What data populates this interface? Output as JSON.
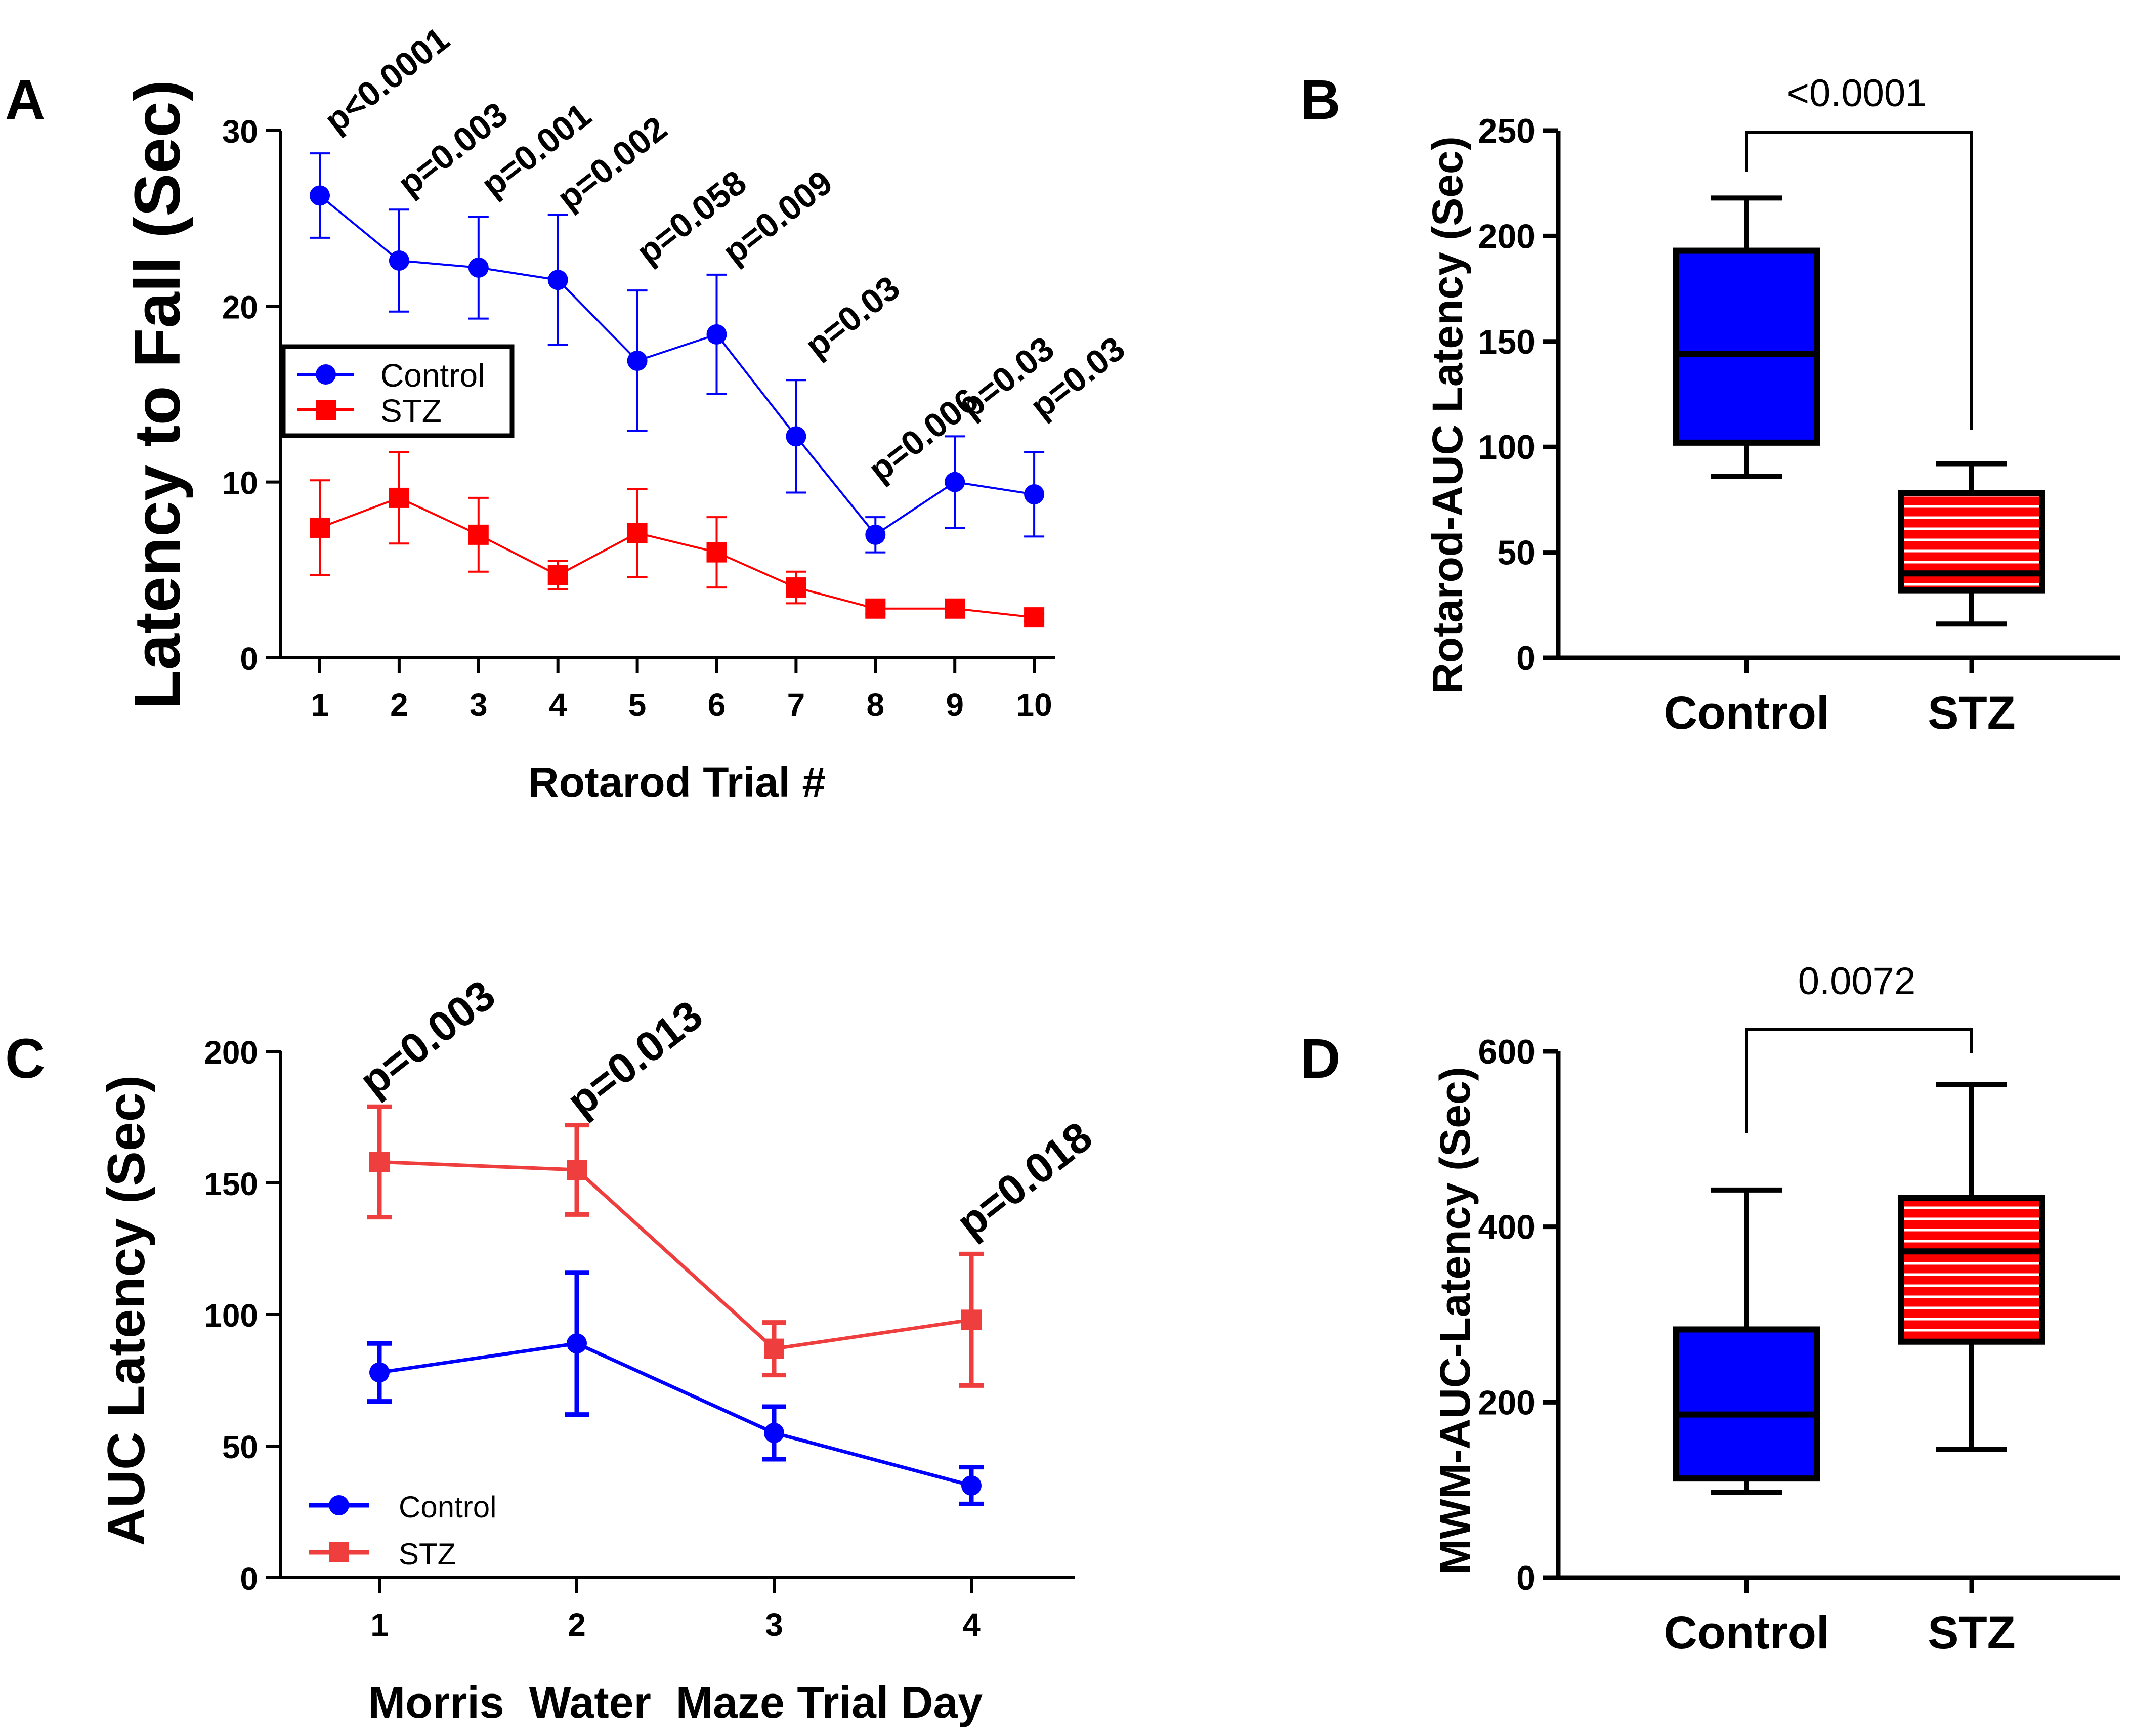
{
  "colors": {
    "control": "#0000ff",
    "stz": "#ff0000",
    "stz_light": "#ef3e3e",
    "axis": "#000000"
  },
  "chart_data": [
    {
      "panel": "A",
      "type": "line",
      "xlabel": "Rotarod Trial #",
      "ylabel": "Latency to Fall (Sec)",
      "x": [
        1,
        2,
        3,
        4,
        5,
        6,
        7,
        8,
        9,
        10
      ],
      "ylim": [
        0,
        30
      ],
      "yticks": [
        0,
        10,
        20,
        30
      ],
      "legend": [
        "Control",
        "STZ"
      ],
      "series": [
        {
          "name": "Control",
          "values": [
            26.3,
            22.6,
            22.2,
            21.5,
            16.9,
            18.4,
            12.6,
            7.0,
            10.0,
            9.3
          ],
          "errors": [
            2.4,
            2.9,
            2.9,
            3.7,
            4.0,
            3.4,
            3.2,
            1.0,
            2.6,
            2.4
          ]
        },
        {
          "name": "STZ",
          "values": [
            7.4,
            9.1,
            7.0,
            4.7,
            7.1,
            6.0,
            4.0,
            2.8,
            2.8,
            2.3
          ],
          "errors": [
            2.7,
            2.6,
            2.1,
            0.8,
            2.5,
            2.0,
            0.9,
            0.3,
            0.2,
            0.2
          ]
        }
      ],
      "annotations": [
        "p<0.0001",
        "p=0.003",
        "p=0.001",
        "p=0.002",
        "p=0.058",
        "p=0.009",
        "p=0.03",
        "p=0.006",
        "p=0.03",
        "p=0.03"
      ]
    },
    {
      "panel": "B",
      "type": "box",
      "ylabel": "Rotarod-AUC Latency (Sec)",
      "categories": [
        "Control",
        "STZ"
      ],
      "ylim": [
        0,
        250
      ],
      "yticks": [
        0,
        50,
        100,
        150,
        200,
        250
      ],
      "boxes": [
        {
          "name": "Control",
          "min": 86,
          "q1": 102,
          "median": 144,
          "q3": 193,
          "max": 218
        },
        {
          "name": "STZ",
          "min": 16,
          "q1": 32,
          "median": 40,
          "q3": 78,
          "max": 92
        }
      ],
      "significance": "<0.0001"
    },
    {
      "panel": "C",
      "type": "line",
      "xlabel": "Morris  Water  Maze Trial Day",
      "ylabel": "AUC Latency (Sec)",
      "x": [
        1,
        2,
        3,
        4
      ],
      "ylim": [
        0,
        200
      ],
      "yticks": [
        0,
        50,
        100,
        150,
        200
      ],
      "legend": [
        "Control",
        "STZ"
      ],
      "series": [
        {
          "name": "Control",
          "values": [
            78,
            89,
            55,
            35
          ],
          "errors": [
            11,
            27,
            10,
            7
          ]
        },
        {
          "name": "STZ",
          "values": [
            158,
            155,
            87,
            98
          ],
          "errors": [
            21,
            17,
            10,
            25
          ]
        }
      ],
      "annotations": [
        "p=0.003",
        "p=0.013",
        "p=0.018"
      ]
    },
    {
      "panel": "D",
      "type": "box",
      "ylabel": "MWM-AUC-Latency (Sec)",
      "categories": [
        "Control",
        "STZ"
      ],
      "ylim": [
        0,
        600
      ],
      "yticks": [
        0,
        200,
        400,
        600
      ],
      "boxes": [
        {
          "name": "Control",
          "min": 97,
          "q1": 113,
          "median": 186,
          "q3": 283,
          "max": 442
        },
        {
          "name": "STZ",
          "min": 146,
          "q1": 269,
          "median": 372,
          "q3": 433,
          "max": 562
        }
      ],
      "significance": "0.0072"
    }
  ]
}
